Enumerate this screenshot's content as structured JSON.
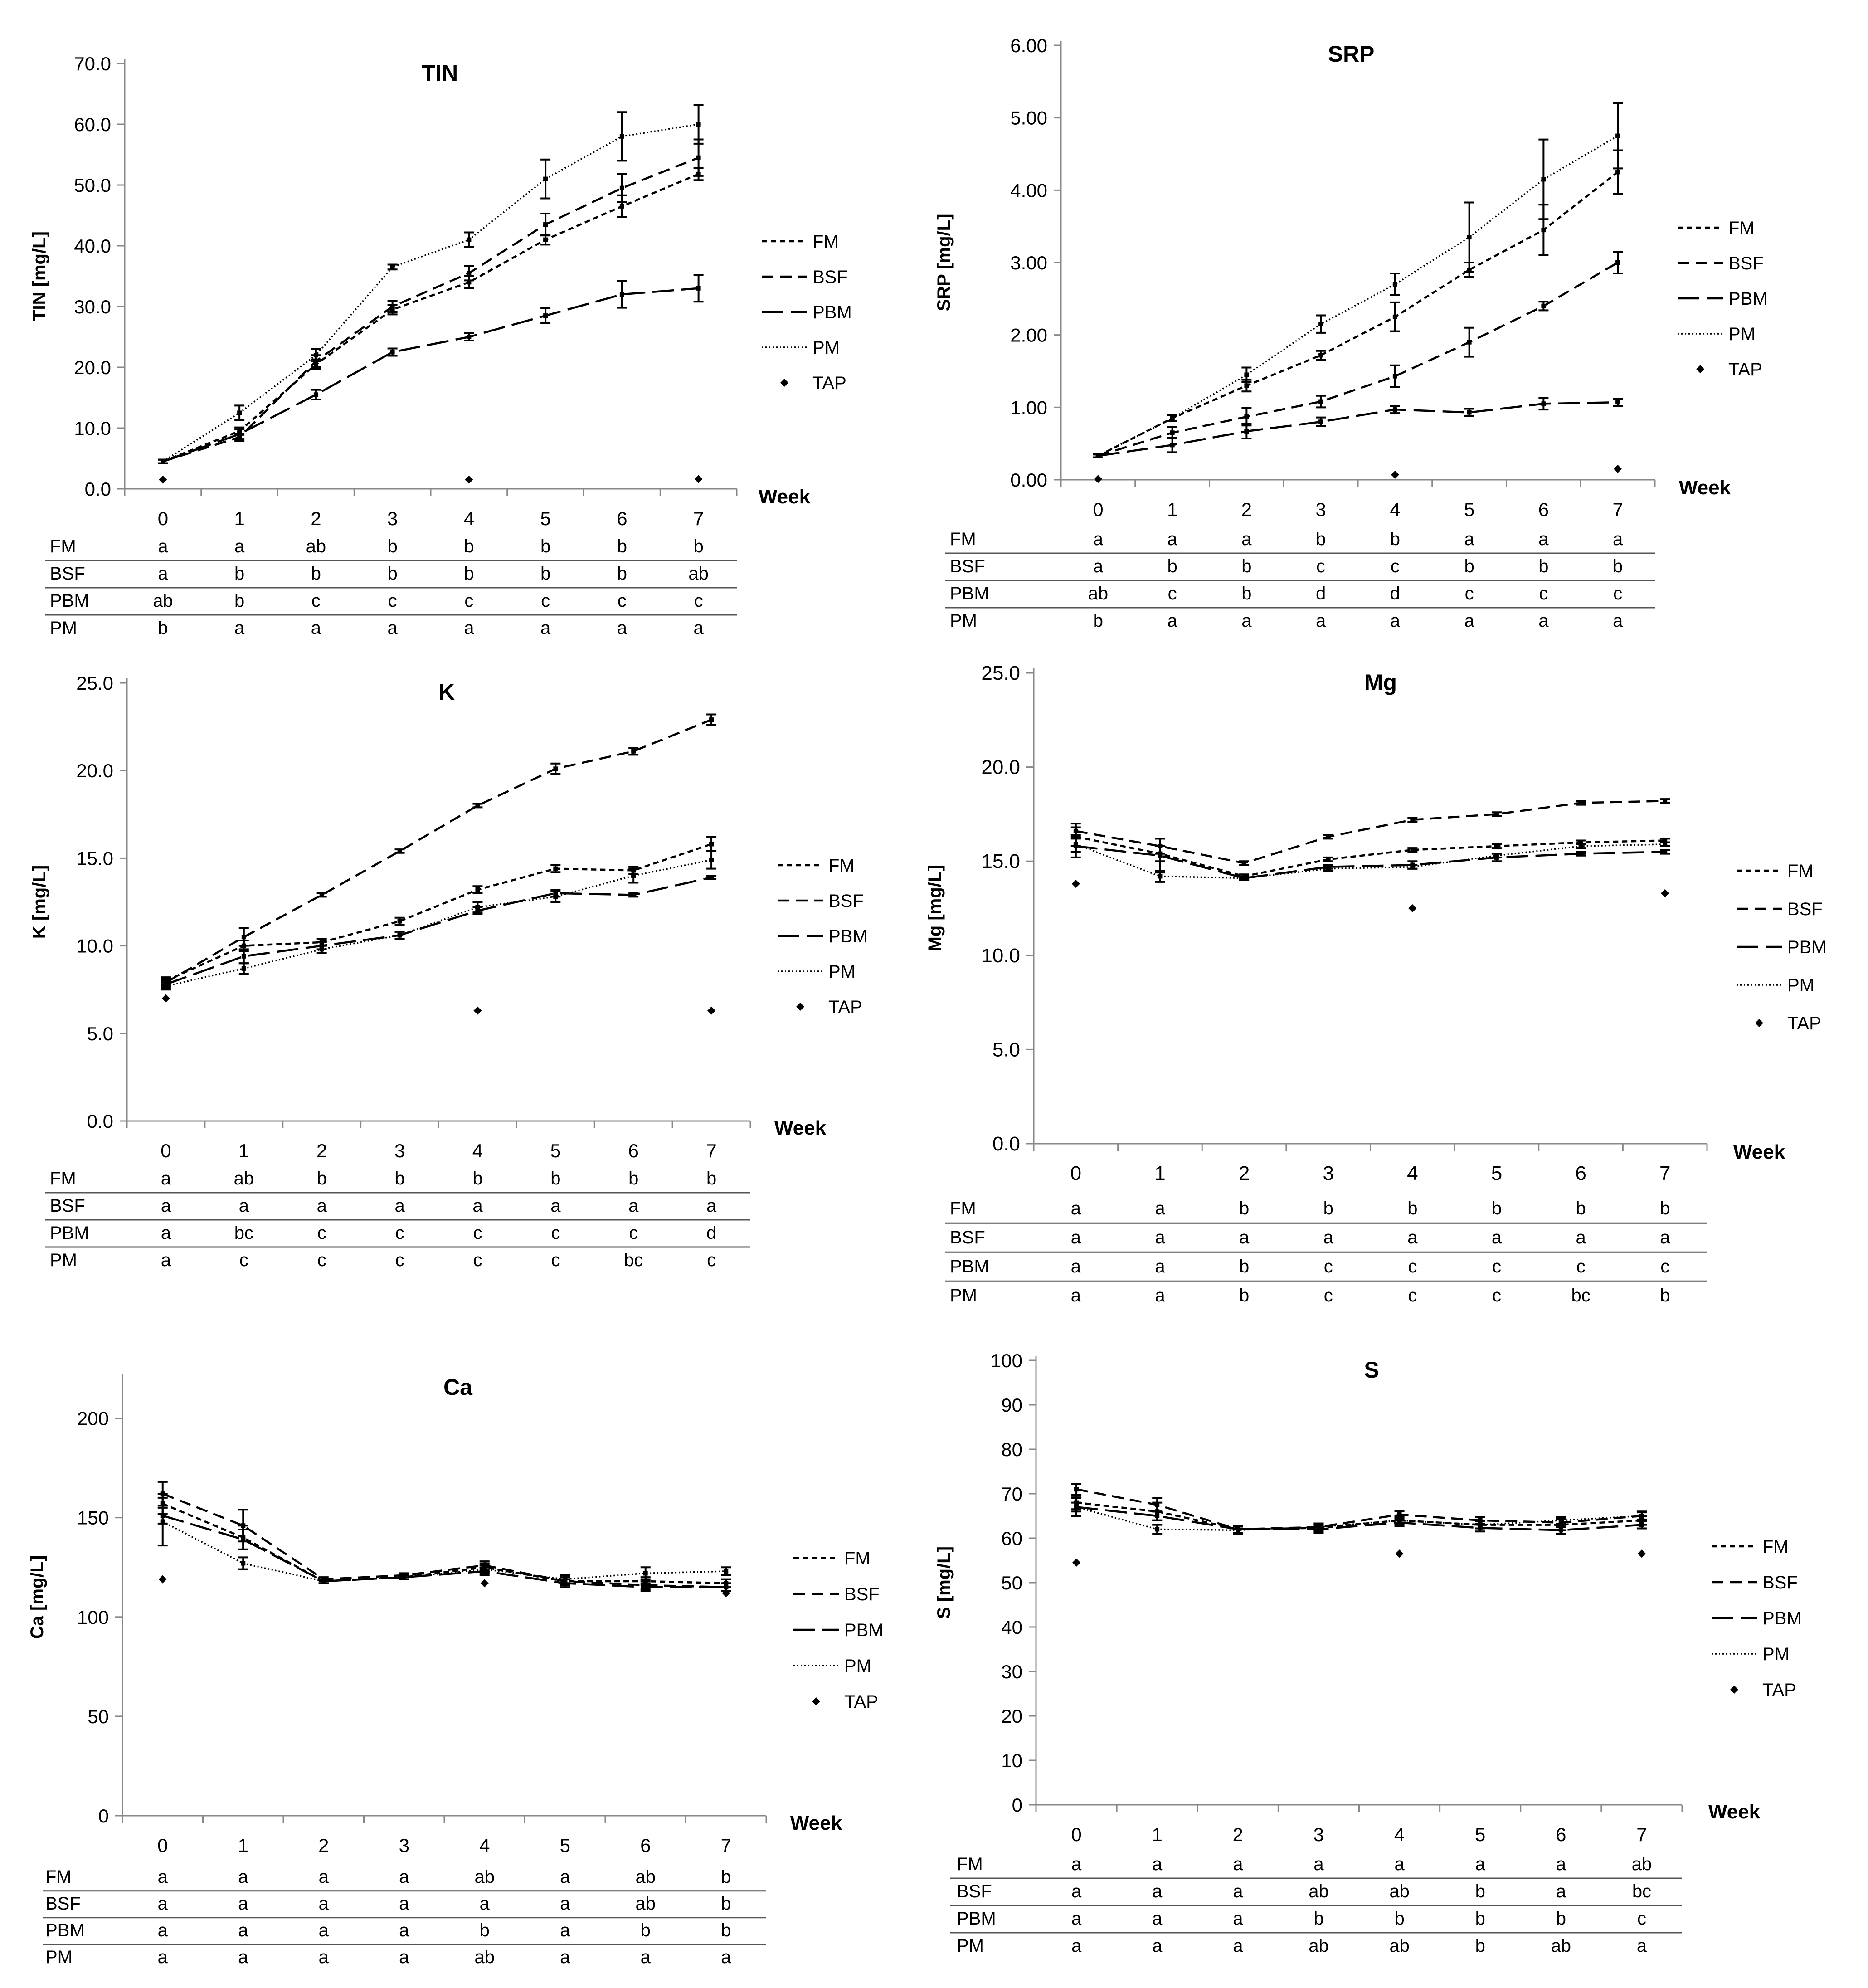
{
  "chart_data": [
    {
      "id": "TIN",
      "type": "line",
      "title": "TIN",
      "ylabel": "TIN [mg/L]",
      "xlabel": "Week",
      "ylim": [
        0,
        70
      ],
      "yticks": [
        0,
        10,
        20,
        30,
        40,
        50,
        60,
        70
      ],
      "ytick_decimals": 1,
      "categories": [
        "0",
        "1",
        "2",
        "3",
        "4",
        "5",
        "6",
        "7"
      ],
      "series": [
        {
          "name": "FM",
          "values": [
            4.5,
            9.5,
            20.5,
            29.5,
            34.0,
            41.0,
            46.5,
            51.8
          ],
          "errors": [
            0.3,
            0.6,
            0.8,
            0.8,
            1.0,
            0.8,
            1.8,
            1.0
          ]
        },
        {
          "name": "BSF",
          "values": [
            4.5,
            8.5,
            21.0,
            30.0,
            35.5,
            43.5,
            49.5,
            54.5
          ],
          "errors": [
            0.3,
            0.6,
            1.0,
            0.9,
            1.2,
            1.8,
            2.3,
            3.0
          ]
        },
        {
          "name": "PBM",
          "values": [
            4.5,
            9.0,
            15.5,
            22.5,
            25.0,
            28.5,
            32.0,
            33.0
          ],
          "errors": [
            0.3,
            0.8,
            0.8,
            0.6,
            0.6,
            1.2,
            2.2,
            2.2
          ]
        },
        {
          "name": "PM",
          "values": [
            4.5,
            12.5,
            22.0,
            36.5,
            41.0,
            51.0,
            58.0,
            60.0
          ],
          "errors": [
            0.3,
            1.2,
            1.0,
            0.4,
            1.2,
            3.2,
            4.0,
            3.2
          ]
        },
        {
          "name": "TAP",
          "values": [
            1.5,
            null,
            null,
            null,
            1.5,
            null,
            null,
            1.6
          ]
        }
      ],
      "letters": {
        "FM": [
          "a",
          "a",
          "ab",
          "b",
          "b",
          "b",
          "b",
          "b"
        ],
        "BSF": [
          "a",
          "b",
          "b",
          "b",
          "b",
          "b",
          "b",
          "ab"
        ],
        "PBM": [
          "ab",
          "b",
          "c",
          "c",
          "c",
          "c",
          "c",
          "c"
        ],
        "PM": [
          "b",
          "a",
          "a",
          "a",
          "a",
          "a",
          "a",
          "a"
        ]
      }
    },
    {
      "id": "SRP",
      "type": "line",
      "title": "SRP",
      "ylabel": "SRP [mg/L]",
      "xlabel": "Week",
      "ylim": [
        0,
        6
      ],
      "yticks": [
        0,
        1,
        2,
        3,
        4,
        5,
        6
      ],
      "ytick_decimals": 2,
      "categories": [
        "0",
        "1",
        "2",
        "3",
        "4",
        "5",
        "6",
        "7"
      ],
      "series": [
        {
          "name": "FM",
          "values": [
            0.33,
            0.85,
            1.3,
            1.72,
            2.25,
            2.9,
            3.45,
            4.25
          ],
          "errors": [
            0.02,
            0.04,
            0.08,
            0.06,
            0.2,
            0.1,
            0.35,
            0.3
          ]
        },
        {
          "name": "BSF",
          "values": [
            0.33,
            0.65,
            0.87,
            1.08,
            1.43,
            1.9,
            2.4,
            3.0
          ],
          "errors": [
            0.02,
            0.08,
            0.12,
            0.08,
            0.15,
            0.2,
            0.06,
            0.15
          ]
        },
        {
          "name": "PBM",
          "values": [
            0.33,
            0.48,
            0.67,
            0.8,
            0.97,
            0.93,
            1.05,
            1.07
          ],
          "errors": [
            0.02,
            0.1,
            0.1,
            0.06,
            0.05,
            0.05,
            0.08,
            0.05
          ]
        },
        {
          "name": "PM",
          "values": [
            0.33,
            0.85,
            1.45,
            2.15,
            2.7,
            3.35,
            4.15,
            4.75
          ],
          "errors": [
            0.02,
            0.04,
            0.1,
            0.12,
            0.15,
            0.48,
            0.55,
            0.45
          ]
        },
        {
          "name": "TAP",
          "values": [
            0.01,
            null,
            null,
            null,
            0.07,
            null,
            null,
            0.15
          ]
        }
      ],
      "letters": {
        "FM": [
          "a",
          "a",
          "a",
          "b",
          "b",
          "a",
          "a",
          "a"
        ],
        "BSF": [
          "a",
          "b",
          "b",
          "c",
          "c",
          "b",
          "b",
          "b"
        ],
        "PBM": [
          "ab",
          "c",
          "b",
          "d",
          "d",
          "c",
          "c",
          "c"
        ],
        "PM": [
          "b",
          "a",
          "a",
          "a",
          "a",
          "a",
          "a",
          "a"
        ]
      }
    },
    {
      "id": "K",
      "type": "line",
      "title": "K",
      "ylabel": "K [mg/L]",
      "xlabel": "Week",
      "ylim": [
        0,
        25
      ],
      "yticks": [
        0,
        5,
        10,
        15,
        20,
        25
      ],
      "ytick_decimals": 1,
      "categories": [
        "0",
        "1",
        "2",
        "3",
        "4",
        "5",
        "6",
        "7"
      ],
      "series": [
        {
          "name": "FM",
          "values": [
            8.0,
            10.0,
            10.2,
            11.4,
            13.2,
            14.4,
            14.3,
            15.8
          ],
          "errors": [
            0.2,
            0.3,
            0.2,
            0.2,
            0.2,
            0.2,
            0.2,
            0.4
          ]
        },
        {
          "name": "BSF",
          "values": [
            7.9,
            10.5,
            12.9,
            15.4,
            18.0,
            20.1,
            21.1,
            22.9
          ],
          "errors": [
            0.2,
            0.5,
            0.1,
            0.1,
            0.1,
            0.3,
            0.2,
            0.3
          ]
        },
        {
          "name": "PBM",
          "values": [
            7.8,
            9.4,
            10.0,
            10.6,
            12.0,
            13.0,
            12.9,
            13.9
          ],
          "errors": [
            0.2,
            0.4,
            0.2,
            0.2,
            0.2,
            0.2,
            0.1,
            0.1
          ]
        },
        {
          "name": "PM",
          "values": [
            7.7,
            8.7,
            9.8,
            10.6,
            12.2,
            12.8,
            14.0,
            14.9
          ],
          "errors": [
            0.2,
            0.3,
            0.2,
            0.2,
            0.3,
            0.3,
            0.4,
            0.5
          ]
        },
        {
          "name": "TAP",
          "values": [
            7.0,
            null,
            null,
            null,
            6.3,
            null,
            null,
            6.3
          ]
        }
      ],
      "letters": {
        "FM": [
          "a",
          "ab",
          "b",
          "b",
          "b",
          "b",
          "b",
          "b"
        ],
        "BSF": [
          "a",
          "a",
          "a",
          "a",
          "a",
          "a",
          "a",
          "a"
        ],
        "PBM": [
          "a",
          "bc",
          "c",
          "c",
          "c",
          "c",
          "c",
          "d"
        ],
        "PM": [
          "a",
          "c",
          "c",
          "c",
          "c",
          "c",
          "bc",
          "c"
        ]
      }
    },
    {
      "id": "Mg",
      "type": "line",
      "title": "Mg",
      "ylabel": "Mg [mg/L]",
      "xlabel": "Week",
      "ylim": [
        0,
        25
      ],
      "yticks": [
        0,
        5,
        10,
        15,
        20,
        25
      ],
      "ytick_decimals": 1,
      "categories": [
        "0",
        "1",
        "2",
        "3",
        "4",
        "5",
        "6",
        "7"
      ],
      "series": [
        {
          "name": "FM",
          "values": [
            16.3,
            15.4,
            14.2,
            15.1,
            15.6,
            15.8,
            16.0,
            16.1
          ],
          "errors": [
            0.5,
            0.4,
            0.1,
            0.1,
            0.1,
            0.1,
            0.1,
            0.1
          ]
        },
        {
          "name": "BSF",
          "values": [
            16.6,
            15.8,
            14.9,
            16.3,
            17.2,
            17.5,
            18.1,
            18.2
          ],
          "errors": [
            0.4,
            0.4,
            0.1,
            0.1,
            0.1,
            0.1,
            0.1,
            0.1
          ]
        },
        {
          "name": "PBM",
          "values": [
            15.8,
            15.3,
            14.1,
            14.7,
            14.8,
            15.2,
            15.4,
            15.5
          ],
          "errors": [
            0.6,
            0.9,
            0.1,
            0.1,
            0.2,
            0.2,
            0.1,
            0.1
          ]
        },
        {
          "name": "PM",
          "values": [
            15.9,
            14.2,
            14.1,
            14.6,
            14.7,
            15.3,
            15.8,
            15.9
          ],
          "errors": [
            0.4,
            0.3,
            0.1,
            0.1,
            0.1,
            0.1,
            0.1,
            0.1
          ]
        },
        {
          "name": "TAP",
          "values": [
            13.8,
            null,
            null,
            null,
            12.5,
            null,
            null,
            13.3
          ]
        }
      ],
      "letters": {
        "FM": [
          "a",
          "a",
          "b",
          "b",
          "b",
          "b",
          "b",
          "b"
        ],
        "BSF": [
          "a",
          "a",
          "a",
          "a",
          "a",
          "a",
          "a",
          "a"
        ],
        "PBM": [
          "a",
          "a",
          "b",
          "c",
          "c",
          "c",
          "c",
          "c"
        ],
        "PM": [
          "a",
          "a",
          "b",
          "c",
          "c",
          "c",
          "bc",
          "b"
        ]
      }
    },
    {
      "id": "Ca",
      "type": "line",
      "title": "Ca",
      "ylabel": "Ca [mg/L]",
      "xlabel": "Week",
      "ylim": [
        0,
        220
      ],
      "yticks": [
        0,
        50,
        100,
        150,
        200
      ],
      "ytick_decimals": 0,
      "categories": [
        "0",
        "1",
        "2",
        "3",
        "4",
        "5",
        "6",
        "7"
      ],
      "series": [
        {
          "name": "FM",
          "values": [
            157,
            140,
            118,
            120,
            125,
            118,
            118,
            117
          ],
          "errors": [
            5,
            6,
            1,
            1,
            2,
            2,
            2,
            2
          ]
        },
        {
          "name": "BSF",
          "values": [
            162,
            146,
            119,
            121,
            126,
            118,
            116,
            115
          ],
          "errors": [
            6,
            8,
            1,
            1,
            2,
            2,
            2,
            2
          ]
        },
        {
          "name": "PBM",
          "values": [
            151,
            139,
            118,
            120,
            123,
            117,
            115,
            115
          ],
          "errors": [
            4,
            5,
            1,
            1,
            2,
            2,
            2,
            2
          ]
        },
        {
          "name": "PM",
          "values": [
            148,
            127,
            118,
            120,
            124,
            119,
            122,
            123
          ],
          "errors": [
            12,
            3,
            1,
            1,
            2,
            2,
            3,
            2
          ]
        },
        {
          "name": "TAP",
          "values": [
            119,
            null,
            null,
            null,
            117,
            null,
            null,
            112
          ]
        }
      ],
      "letters": {
        "FM": [
          "a",
          "a",
          "a",
          "a",
          "ab",
          "a",
          "ab",
          "b"
        ],
        "BSF": [
          "a",
          "a",
          "a",
          "a",
          "a",
          "a",
          "ab",
          "b"
        ],
        "PBM": [
          "a",
          "a",
          "a",
          "a",
          "b",
          "a",
          "b",
          "b"
        ],
        "PM": [
          "a",
          "a",
          "a",
          "a",
          "ab",
          "a",
          "a",
          "a"
        ]
      }
    },
    {
      "id": "S",
      "type": "line",
      "title": "S",
      "ylabel": "S [mg/L]",
      "xlabel": "Week",
      "ylim": [
        0,
        100
      ],
      "yticks": [
        0,
        10,
        20,
        30,
        40,
        50,
        60,
        70,
        80,
        90,
        100
      ],
      "ytick_decimals": 0,
      "categories": [
        "0",
        "1",
        "2",
        "3",
        "4",
        "5",
        "6",
        "7"
      ],
      "series": [
        {
          "name": "FM",
          "values": [
            68.0,
            66.0,
            62.0,
            62.3,
            64.0,
            63.0,
            63.0,
            64.0
          ],
          "errors": [
            1.5,
            2.0,
            0.8,
            0.8,
            1.0,
            0.8,
            1.2,
            1.0
          ]
        },
        {
          "name": "BSF",
          "values": [
            71.0,
            67.5,
            62.0,
            62.5,
            65.3,
            64.0,
            63.5,
            65.0
          ],
          "errors": [
            1.2,
            1.5,
            0.8,
            0.8,
            0.8,
            0.8,
            1.0,
            1.0
          ]
        },
        {
          "name": "PBM",
          "values": [
            67.0,
            65.0,
            62.0,
            62.0,
            63.5,
            62.3,
            61.8,
            63.0
          ],
          "errors": [
            1.0,
            1.0,
            0.8,
            0.8,
            0.8,
            0.8,
            0.8,
            0.8
          ]
        },
        {
          "name": "PM",
          "values": [
            67.0,
            62.0,
            61.8,
            62.5,
            64.0,
            63.0,
            64.0,
            65.0
          ],
          "errors": [
            2.0,
            1.0,
            0.8,
            0.8,
            0.8,
            0.8,
            0.8,
            0.8
          ]
        },
        {
          "name": "TAP",
          "values": [
            54.5,
            null,
            null,
            null,
            56.5,
            null,
            null,
            56.5
          ]
        }
      ],
      "letters": {
        "FM": [
          "a",
          "a",
          "a",
          "a",
          "a",
          "a",
          "a",
          "ab"
        ],
        "BSF": [
          "a",
          "a",
          "a",
          "ab",
          "ab",
          "b",
          "a",
          "bc"
        ],
        "PBM": [
          "a",
          "a",
          "a",
          "b",
          "b",
          "b",
          "b",
          "c"
        ],
        "PM": [
          "a",
          "a",
          "a",
          "ab",
          "ab",
          "b",
          "ab",
          "a"
        ]
      }
    }
  ],
  "legend_entries": [
    "FM",
    "BSF",
    "PBM",
    "PM",
    "TAP"
  ],
  "styles": {
    "line_color": "#000000",
    "axis_color": "#888888",
    "table_rule_color": "#555555",
    "background": "#ffffff"
  }
}
